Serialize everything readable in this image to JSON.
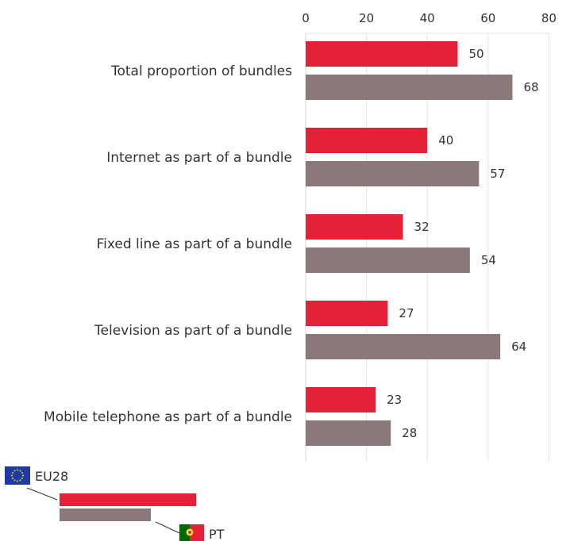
{
  "chart_data": {
    "type": "bar",
    "orientation": "horizontal",
    "categories": [
      "Total proportion of bundles",
      "Internet as part of a bundle",
      "Fixed line as part of a bundle",
      "Television as part of a bundle",
      "Mobile telephone as part of a bundle"
    ],
    "series": [
      {
        "name": "EU28",
        "values": [
          50,
          40,
          32,
          27,
          23
        ],
        "color": "#e32237"
      },
      {
        "name": "PT",
        "values": [
          68,
          57,
          54,
          64,
          28
        ],
        "color": "#8b7979"
      }
    ],
    "xlim": [
      0,
      80
    ],
    "xticks": [
      0,
      20,
      40,
      60,
      80
    ],
    "grid": true,
    "axis_position": "top",
    "legend": {
      "placement": "bottom-left",
      "items": [
        "EU28",
        "PT"
      ],
      "icons": [
        "eu-flag-icon",
        "portugal-flag-icon"
      ]
    }
  }
}
